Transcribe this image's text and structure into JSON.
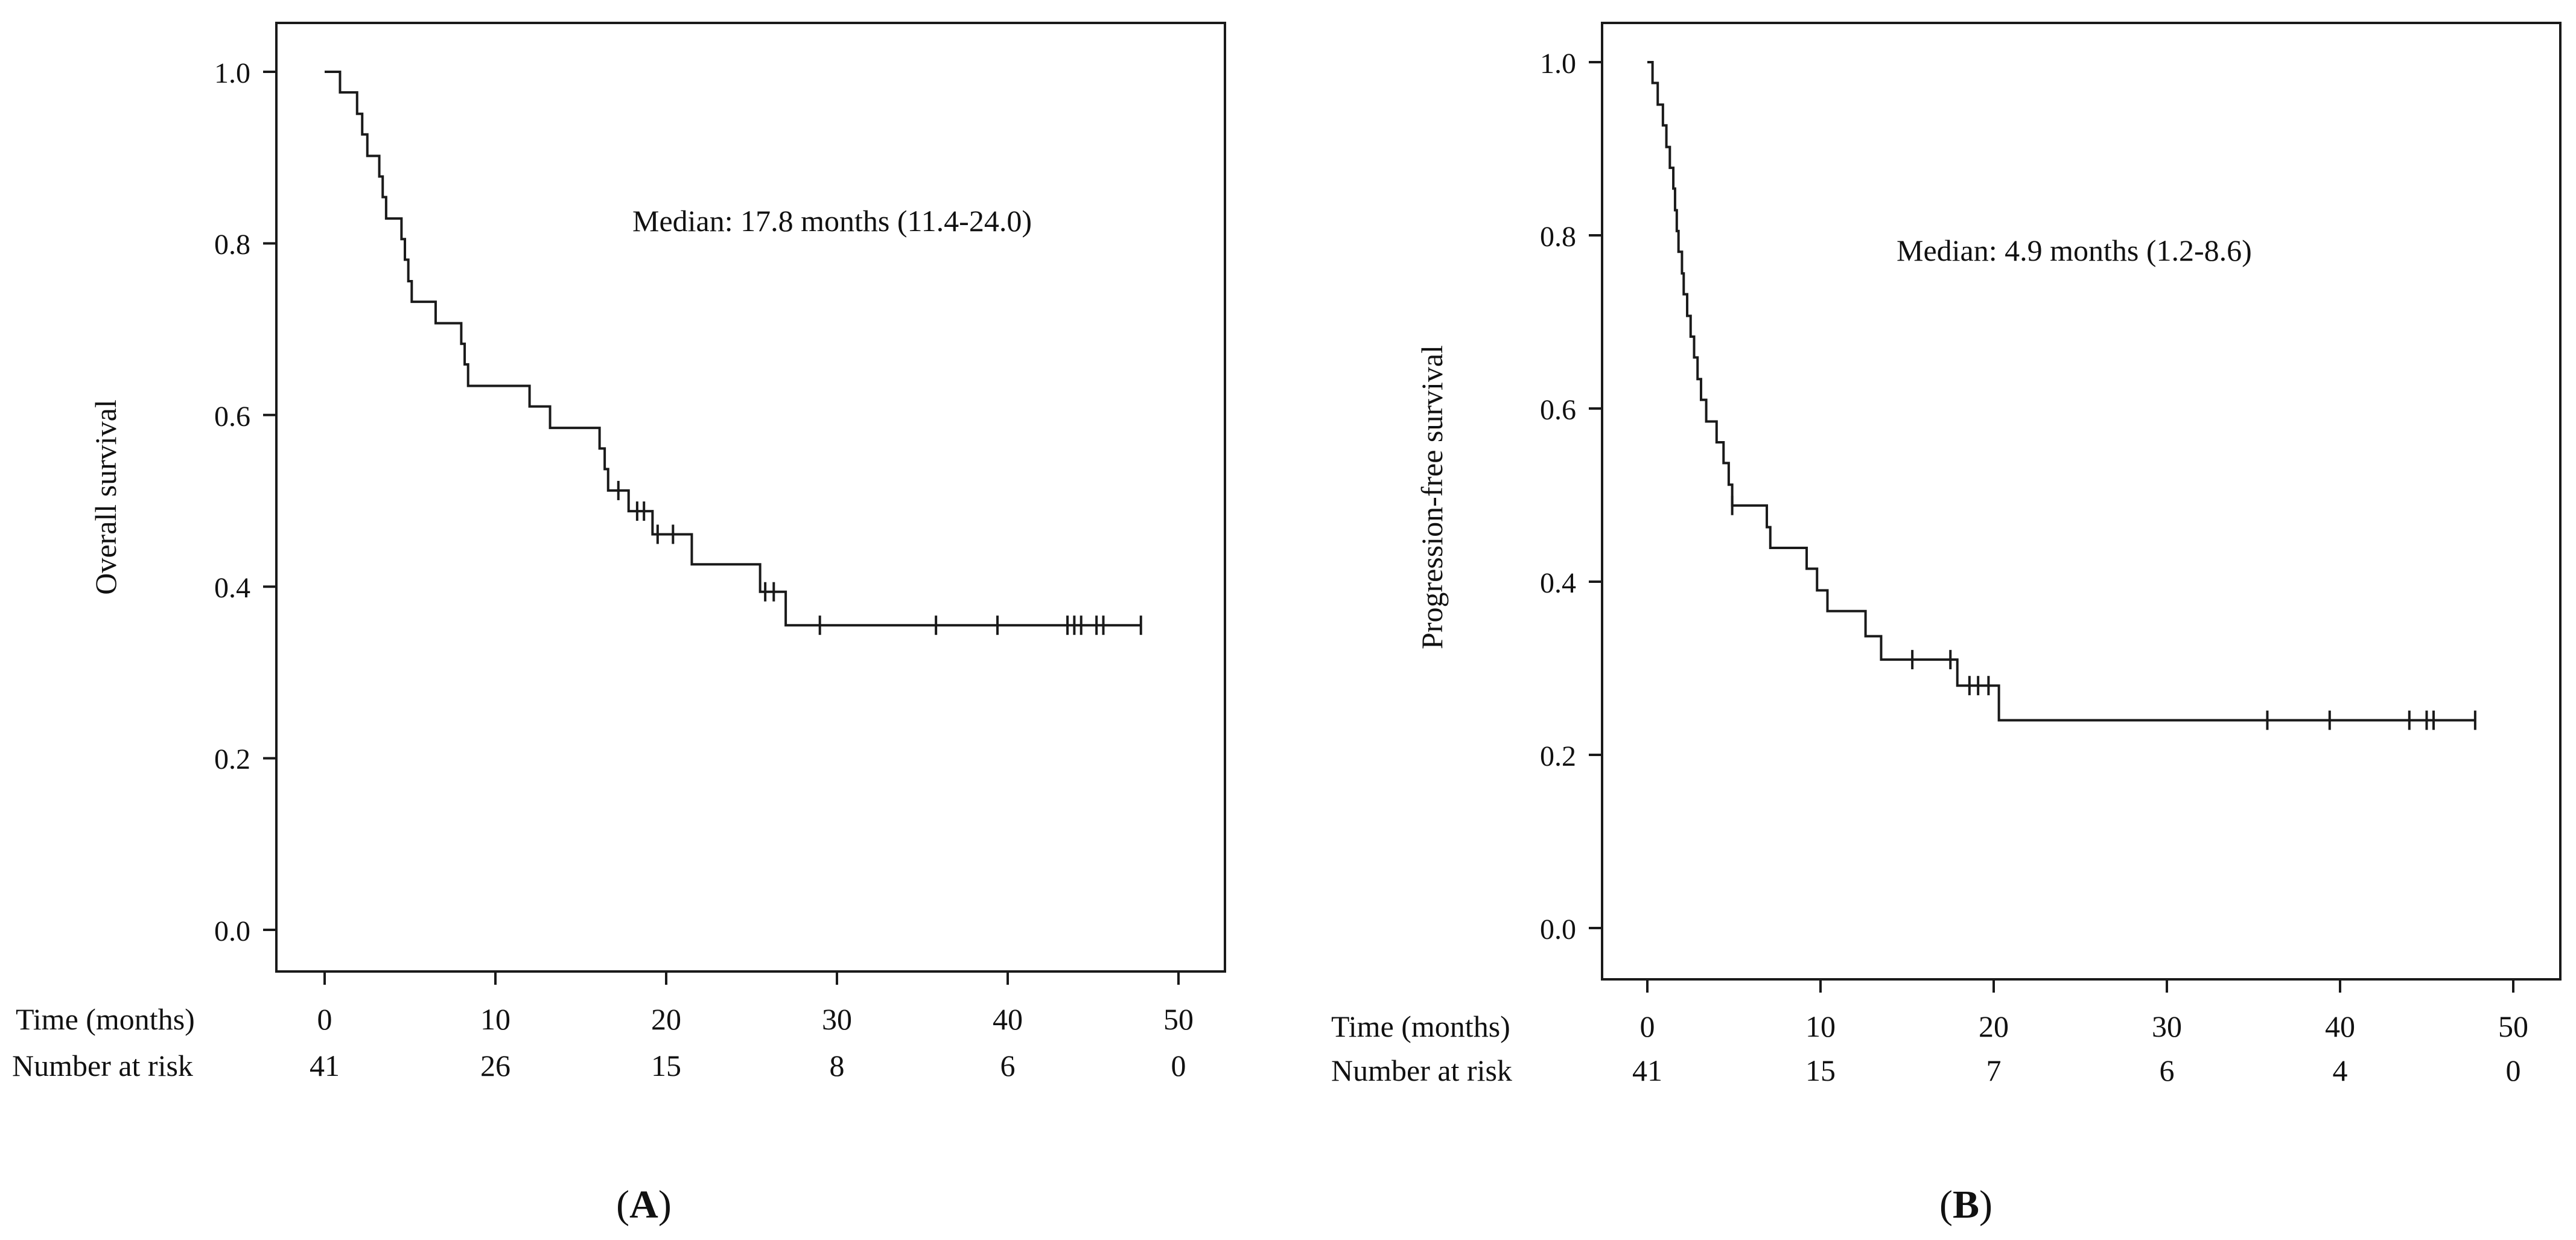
{
  "chart_data": [
    {
      "type": "line",
      "subtype": "kaplan-meier",
      "panel": "A",
      "panel_label_open": "(",
      "panel_label_close": ")",
      "ylabel": "Overall survival",
      "annotation": "Median: 17.8 months (11.4-24.0)",
      "xlim": [
        0,
        50
      ],
      "ylim": [
        0,
        1
      ],
      "x_ticks": [
        0,
        10,
        20,
        30,
        40,
        50
      ],
      "y_ticks": [
        "0.0",
        "0.2",
        "0.4",
        "0.6",
        "0.8",
        "1.0"
      ],
      "risk_table": {
        "time_label": "Time (months)",
        "risk_label": "Number at risk",
        "times": [
          0,
          10,
          20,
          30,
          40,
          50
        ],
        "counts": [
          41,
          26,
          15,
          8,
          6,
          0
        ]
      },
      "steps": [
        [
          0,
          1.0
        ],
        [
          0.9,
          0.976
        ],
        [
          1.9,
          0.951
        ],
        [
          2.2,
          0.927
        ],
        [
          2.5,
          0.902
        ],
        [
          3.2,
          0.878
        ],
        [
          3.4,
          0.854
        ],
        [
          3.6,
          0.829
        ],
        [
          4.5,
          0.805
        ],
        [
          4.7,
          0.781
        ],
        [
          4.9,
          0.756
        ],
        [
          5.1,
          0.732
        ],
        [
          6.5,
          0.707
        ],
        [
          8.0,
          0.683
        ],
        [
          8.2,
          0.659
        ],
        [
          8.4,
          0.634
        ],
        [
          12.0,
          0.61
        ],
        [
          13.2,
          0.585
        ],
        [
          16.1,
          0.561
        ],
        [
          16.4,
          0.537
        ],
        [
          16.6,
          0.512
        ],
        [
          17.8,
          0.488
        ],
        [
          19.2,
          0.461
        ],
        [
          21.5,
          0.426
        ],
        [
          25.5,
          0.394
        ],
        [
          27.0,
          0.355
        ]
      ],
      "end_time": 47.8,
      "censored": [
        17.2,
        18.3,
        18.7,
        19.5,
        20.4,
        25.8,
        26.3,
        29.0,
        35.8,
        39.4,
        43.5,
        43.9,
        44.3,
        45.2,
        45.6,
        47.8
      ]
    },
    {
      "type": "line",
      "subtype": "kaplan-meier",
      "panel": "B",
      "panel_label_open": "(",
      "panel_label_close": ")",
      "ylabel": "Progression-free survival",
      "annotation": "Median: 4.9 months (1.2-8.6)",
      "xlim": [
        0,
        50
      ],
      "ylim": [
        0,
        1
      ],
      "x_ticks": [
        0,
        10,
        20,
        30,
        40,
        50
      ],
      "y_ticks": [
        "0.0",
        "0.2",
        "0.4",
        "0.6",
        "0.8",
        "1.0"
      ],
      "risk_table": {
        "time_label": "Time (months)",
        "risk_label": "Number at risk",
        "times": [
          0,
          10,
          20,
          30,
          40,
          50
        ],
        "counts": [
          41,
          15,
          7,
          6,
          4,
          0
        ]
      },
      "steps": [
        [
          0,
          1.0
        ],
        [
          0.3,
          0.976
        ],
        [
          0.6,
          0.951
        ],
        [
          0.9,
          0.927
        ],
        [
          1.1,
          0.902
        ],
        [
          1.3,
          0.878
        ],
        [
          1.5,
          0.854
        ],
        [
          1.6,
          0.829
        ],
        [
          1.7,
          0.805
        ],
        [
          1.8,
          0.781
        ],
        [
          2.0,
          0.756
        ],
        [
          2.1,
          0.732
        ],
        [
          2.3,
          0.707
        ],
        [
          2.5,
          0.683
        ],
        [
          2.7,
          0.659
        ],
        [
          2.9,
          0.634
        ],
        [
          3.1,
          0.61
        ],
        [
          3.4,
          0.585
        ],
        [
          4.0,
          0.561
        ],
        [
          4.4,
          0.537
        ],
        [
          4.7,
          0.512
        ],
        [
          4.9,
          0.488
        ],
        [
          6.9,
          0.463
        ],
        [
          7.1,
          0.439
        ],
        [
          9.2,
          0.415
        ],
        [
          9.8,
          0.39
        ],
        [
          10.4,
          0.366
        ],
        [
          12.6,
          0.337
        ],
        [
          13.5,
          0.31
        ],
        [
          17.9,
          0.28
        ],
        [
          20.3,
          0.24
        ]
      ],
      "end_time": 47.8,
      "censored": [
        4.9,
        15.3,
        17.5,
        18.6,
        19.1,
        19.7,
        35.8,
        39.4,
        44.0,
        45.0,
        45.4,
        47.8
      ]
    }
  ]
}
